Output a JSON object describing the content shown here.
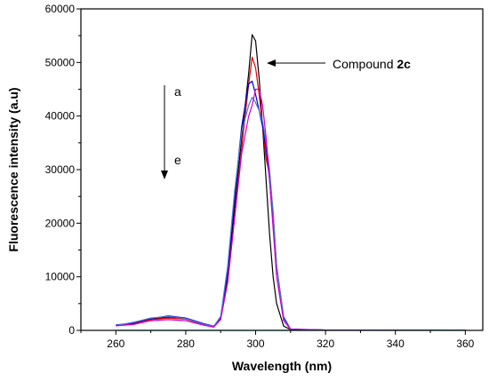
{
  "chart_data": {
    "type": "line",
    "title": "",
    "xlabel": "Wavelength (nm)",
    "ylabel": "Fluorescence intensity (a.u)",
    "xlim": [
      250,
      365
    ],
    "ylim": [
      0,
      60000
    ],
    "x_ticks": [
      260,
      280,
      300,
      320,
      340,
      360
    ],
    "y_ticks": [
      0,
      10000,
      20000,
      30000,
      40000,
      50000,
      60000
    ],
    "grid": false,
    "legend": "none",
    "series": [
      {
        "color": "#000000",
        "x": [
          260,
          265,
          270,
          275,
          280,
          285,
          288,
          290,
          292,
          294,
          296,
          298,
          299,
          300,
          301,
          302,
          303,
          304,
          305,
          306,
          308,
          310,
          320,
          340,
          360
        ],
        "y": [
          900,
          1200,
          2100,
          2500,
          2200,
          1200,
          700,
          2500,
          10000,
          23000,
          36000,
          48000,
          55200,
          54000,
          47000,
          38000,
          28000,
          18000,
          10000,
          5000,
          800,
          150,
          60,
          40,
          30
        ]
      },
      {
        "color": "#e00000",
        "x": [
          260,
          265,
          270,
          275,
          280,
          285,
          288,
          290,
          292,
          294,
          296,
          298,
          299,
          300,
          301,
          302,
          303,
          304,
          305,
          306,
          308,
          310,
          320,
          340,
          360
        ],
        "y": [
          950,
          1300,
          2000,
          2300,
          2100,
          1100,
          650,
          2200,
          9000,
          21000,
          34000,
          46000,
          51000,
          49000,
          44000,
          38000,
          32000,
          29000,
          22000,
          12000,
          2000,
          200,
          60,
          40,
          30
        ]
      },
      {
        "color": "#0000d0",
        "x": [
          260,
          265,
          270,
          275,
          280,
          285,
          288,
          290,
          292,
          294,
          296,
          298,
          299,
          300,
          301,
          302,
          303,
          304,
          305,
          306,
          308,
          310,
          320,
          340,
          360
        ],
        "y": [
          1000,
          1400,
          2200,
          2700,
          2300,
          1300,
          800,
          2400,
          11000,
          25000,
          38000,
          46000,
          46500,
          44000,
          41000,
          38000,
          34000,
          28000,
          20000,
          12000,
          2500,
          250,
          60,
          40,
          30
        ]
      },
      {
        "color": "#4a7ad0",
        "x": [
          260,
          265,
          270,
          275,
          280,
          285,
          288,
          290,
          292,
          294,
          296,
          298,
          299,
          300,
          301,
          302,
          303,
          304,
          305,
          306,
          308,
          310,
          320,
          340,
          360
        ],
        "y": [
          900,
          1500,
          2300,
          2600,
          2200,
          1200,
          750,
          2600,
          12000,
          26000,
          37000,
          42000,
          43500,
          42500,
          41000,
          39000,
          35000,
          30000,
          22000,
          12000,
          2200,
          200,
          60,
          40,
          30
        ]
      },
      {
        "color": "#d000d0",
        "x": [
          260,
          265,
          270,
          275,
          280,
          285,
          288,
          290,
          292,
          294,
          296,
          298,
          299,
          300,
          301,
          302,
          303,
          304,
          305,
          306,
          308,
          310,
          320,
          340,
          360
        ],
        "y": [
          850,
          1100,
          1800,
          2000,
          1800,
          1000,
          600,
          2000,
          9000,
          21000,
          33000,
          40000,
          42000,
          45000,
          45000,
          42000,
          36000,
          28000,
          19000,
          10000,
          1800,
          180,
          60,
          40,
          30
        ]
      },
      {
        "color": "#00b0b0",
        "x": [
          260,
          280,
          300,
          320,
          340,
          360
        ],
        "y": [
          0,
          0,
          0,
          20,
          30,
          50
        ]
      }
    ],
    "annotations": {
      "compound_prefix": "Compound ",
      "compound_bold": "2c",
      "label_a": "a",
      "label_e": "e"
    }
  }
}
